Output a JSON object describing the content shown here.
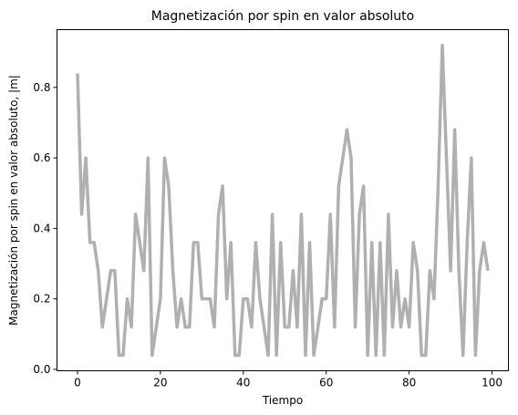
{
  "chart_data": {
    "type": "line",
    "title": "Magnetización por spin en valor absoluto",
    "xlabel": "Tiempo",
    "ylabel": "Magnetización por spin en valor absoluto, |m|",
    "xlim": [
      -4.95,
      103.95
    ],
    "ylim": [
      -0.004,
      0.964
    ],
    "xticks": [
      0,
      20,
      40,
      60,
      80,
      100
    ],
    "xtick_labels": [
      "0",
      "20",
      "40",
      "60",
      "80",
      "100"
    ],
    "yticks": [
      0.0,
      0.2,
      0.4,
      0.6,
      0.8
    ],
    "ytick_labels": [
      "0.0",
      "0.2",
      "0.4",
      "0.6",
      "0.8"
    ],
    "grid": false,
    "series": [
      {
        "color": "#b0b0b0",
        "x": [
          0,
          1,
          2,
          3,
          4,
          5,
          6,
          7,
          8,
          9,
          10,
          11,
          12,
          13,
          14,
          15,
          16,
          17,
          18,
          19,
          20,
          21,
          22,
          23,
          24,
          25,
          26,
          27,
          28,
          29,
          30,
          31,
          32,
          33,
          34,
          35,
          36,
          37,
          38,
          39,
          40,
          41,
          42,
          43,
          44,
          45,
          46,
          47,
          48,
          49,
          50,
          51,
          52,
          53,
          54,
          55,
          56,
          57,
          58,
          59,
          60,
          61,
          62,
          63,
          64,
          65,
          66,
          67,
          68,
          69,
          70,
          71,
          72,
          73,
          74,
          75,
          76,
          77,
          78,
          79,
          80,
          81,
          82,
          83,
          84,
          85,
          86,
          87,
          88,
          89,
          90,
          91,
          92,
          93,
          94,
          95,
          96,
          97,
          98,
          99
        ],
        "y": [
          0.84,
          0.44,
          0.6,
          0.36,
          0.36,
          0.28,
          0.12,
          0.2,
          0.28,
          0.28,
          0.04,
          0.04,
          0.2,
          0.12,
          0.44,
          0.36,
          0.28,
          0.6,
          0.04,
          0.12,
          0.2,
          0.6,
          0.52,
          0.28,
          0.12,
          0.2,
          0.12,
          0.12,
          0.36,
          0.36,
          0.2,
          0.2,
          0.2,
          0.12,
          0.44,
          0.52,
          0.2,
          0.36,
          0.04,
          0.04,
          0.2,
          0.2,
          0.12,
          0.36,
          0.2,
          0.12,
          0.04,
          0.44,
          0.04,
          0.36,
          0.12,
          0.12,
          0.28,
          0.12,
          0.44,
          0.04,
          0.36,
          0.04,
          0.12,
          0.2,
          0.2,
          0.44,
          0.12,
          0.52,
          0.6,
          0.68,
          0.6,
          0.12,
          0.44,
          0.52,
          0.04,
          0.36,
          0.04,
          0.36,
          0.04,
          0.44,
          0.12,
          0.28,
          0.12,
          0.2,
          0.12,
          0.36,
          0.28,
          0.04,
          0.04,
          0.28,
          0.2,
          0.52,
          0.92,
          0.6,
          0.28,
          0.68,
          0.28,
          0.04,
          0.36,
          0.6,
          0.04,
          0.28,
          0.36,
          0.28
        ]
      }
    ]
  }
}
